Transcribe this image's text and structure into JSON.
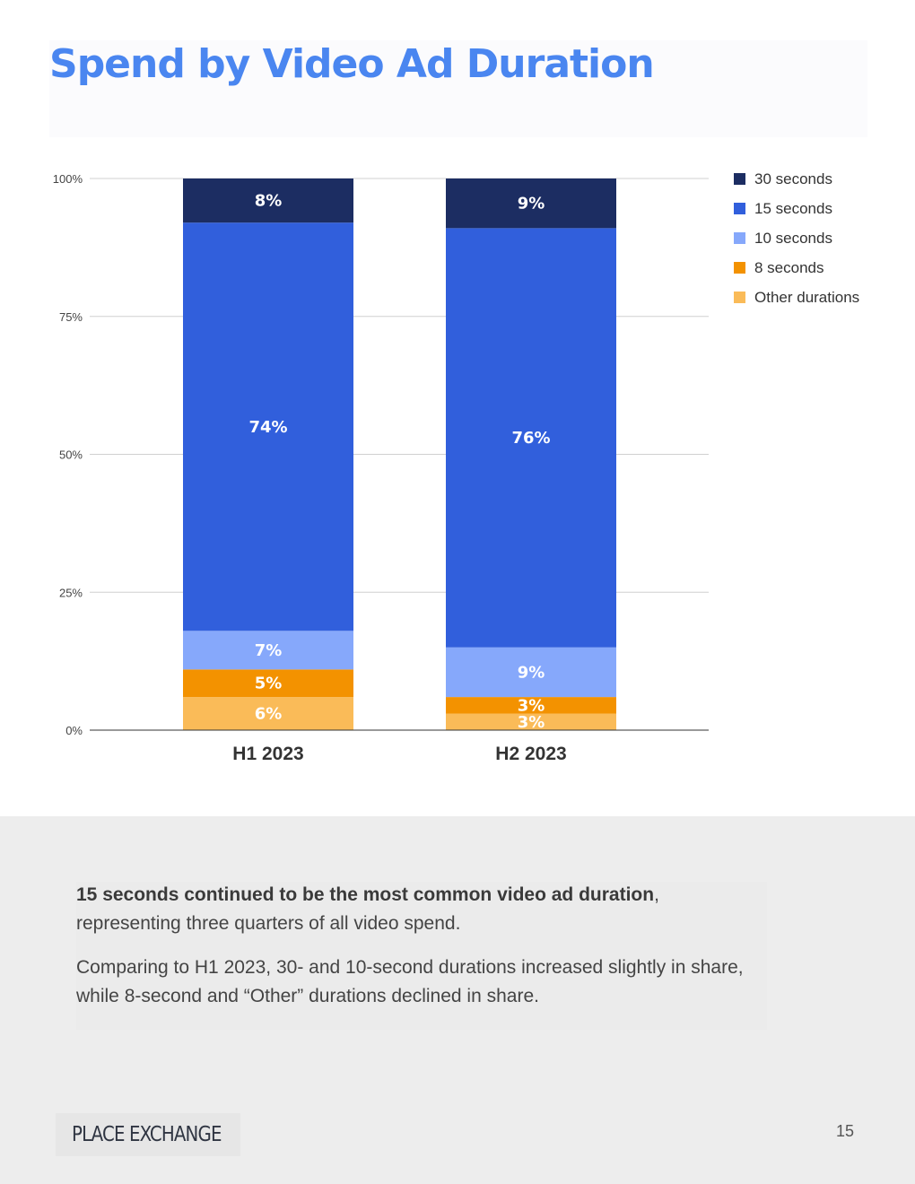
{
  "page": {
    "title": "Spend by Video Ad Duration",
    "page_number": "15"
  },
  "colors": {
    "title": "#4a86f0",
    "series": [
      "#fabb58",
      "#f39200",
      "#86a8fb",
      "#315fdc",
      "#1c2d62"
    ]
  },
  "chart_data": {
    "type": "bar",
    "stacked": true,
    "categories": [
      "H1 2023",
      "H2 2023"
    ],
    "ylim": [
      0,
      100
    ],
    "yticks": [
      "0%",
      "25%",
      "50%",
      "75%",
      "100%"
    ],
    "grid": true,
    "legend_position": "right",
    "legend_order": [
      "30 seconds",
      "15 seconds",
      "10 seconds",
      "8 seconds",
      "Other durations"
    ],
    "series": [
      {
        "name": "Other durations",
        "values": [
          6,
          3
        ],
        "labels": [
          "6%",
          "3%"
        ]
      },
      {
        "name": "8 seconds",
        "values": [
          5,
          3
        ],
        "labels": [
          "5%",
          "3%"
        ]
      },
      {
        "name": "10 seconds",
        "values": [
          7,
          9
        ],
        "labels": [
          "7%",
          "9%"
        ]
      },
      {
        "name": "15 seconds",
        "values": [
          74,
          76
        ],
        "labels": [
          "74%",
          "76%"
        ]
      },
      {
        "name": "30 seconds",
        "values": [
          8,
          9
        ],
        "labels": [
          "8%",
          "9%"
        ]
      }
    ]
  },
  "summary": {
    "p1_bold": "15 seconds continued to be the most common video ad duration",
    "p1_rest": ", representing three quarters of all video spend.",
    "p2": "Comparing to H1 2023, 30- and 10-second durations increased slightly in share, while 8-second and “Other” durations declined in share."
  },
  "footer": {
    "logo_text": "PLACE EXCHANGE"
  }
}
